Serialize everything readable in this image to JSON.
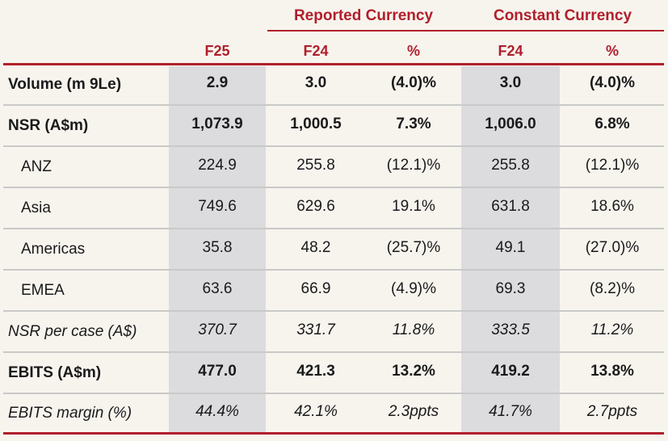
{
  "header": {
    "groups": [
      {
        "label": "Reported Currency"
      },
      {
        "label": "Constant Currency"
      }
    ],
    "columns": [
      "F25",
      "F24",
      "%",
      "F24",
      "%"
    ]
  },
  "rows": [
    {
      "label": "Volume (m 9Le)",
      "values": [
        "2.9",
        "3.0",
        "(4.0)%",
        "3.0",
        "(4.0)%"
      ]
    },
    {
      "label": "NSR (A$m)",
      "values": [
        "1,073.9",
        "1,000.5",
        "7.3%",
        "1,006.0",
        "6.8%"
      ]
    },
    {
      "label": "ANZ",
      "values": [
        "224.9",
        "255.8",
        "(12.1)%",
        "255.8",
        "(12.1)%"
      ]
    },
    {
      "label": "Asia",
      "values": [
        "749.6",
        "629.6",
        "19.1%",
        "631.8",
        "18.6%"
      ]
    },
    {
      "label": "Americas",
      "values": [
        "35.8",
        "48.2",
        "(25.7)%",
        "49.1",
        "(27.0)%"
      ]
    },
    {
      "label": "EMEA",
      "values": [
        "63.6",
        "66.9",
        "(4.9)%",
        "69.3",
        "(8.2)%"
      ]
    },
    {
      "label": "NSR per case (A$)",
      "values": [
        "370.7",
        "331.7",
        "11.8%",
        "333.5",
        "11.2%"
      ]
    },
    {
      "label": "EBITS (A$m)",
      "values": [
        "477.0",
        "421.3",
        "13.2%",
        "419.2",
        "13.8%"
      ]
    },
    {
      "label": "EBITS margin (%)",
      "values": [
        "44.4%",
        "42.1%",
        "2.3ppts",
        "41.7%",
        "2.7ppts"
      ]
    }
  ],
  "colors": {
    "accent": "#b01f2b",
    "shade": "#dcdcdf",
    "background": "#f7f4ee"
  }
}
